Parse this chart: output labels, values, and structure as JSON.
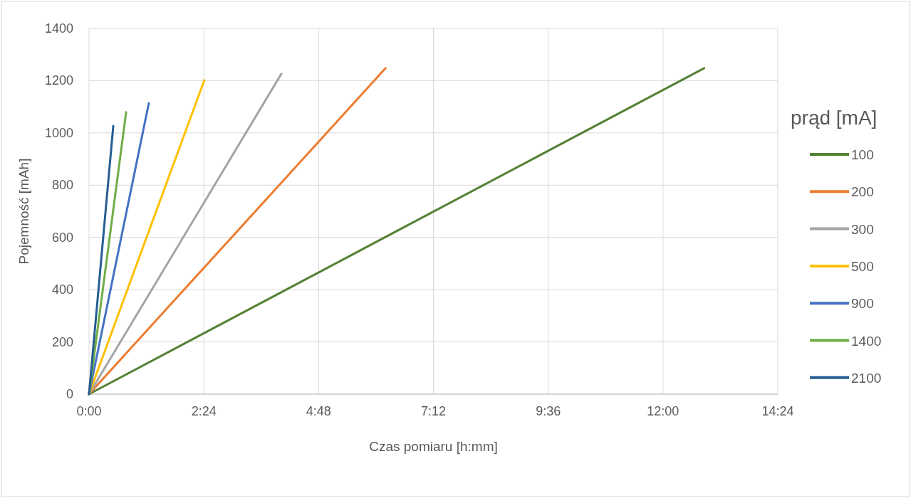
{
  "chart_data": {
    "type": "line",
    "xlabel": "Czas pomiaru [h:mm]",
    "ylabel": "Pojemność [mAh]",
    "legend_title": "prąd [mA]",
    "legend": "right",
    "grid": true,
    "line_style": "solid",
    "marker": "none",
    "xlim": [
      0,
      14.4
    ],
    "xticks": [
      {
        "value": 0,
        "label": "0:00"
      },
      {
        "value": 2.4,
        "label": "2:24"
      },
      {
        "value": 4.8,
        "label": "4:48"
      },
      {
        "value": 7.2,
        "label": "7:12"
      },
      {
        "value": 9.6,
        "label": "9:36"
      },
      {
        "value": 12,
        "label": "12:00"
      },
      {
        "value": 14.4,
        "label": "14:24"
      }
    ],
    "ylim": [
      0,
      1400
    ],
    "yticks": [
      0,
      200,
      400,
      600,
      800,
      1000,
      1200,
      1400
    ],
    "series": [
      {
        "name": "100",
        "color": "#548235",
        "x": [
          0,
          12.86
        ],
        "values": [
          0,
          1248
        ]
      },
      {
        "name": "200",
        "color": "#ed7d31",
        "x": [
          0,
          6.2
        ],
        "values": [
          0,
          1248
        ]
      },
      {
        "name": "300",
        "color": "#a5a5a5",
        "x": [
          0,
          4.02
        ],
        "values": [
          0,
          1226
        ]
      },
      {
        "name": "500",
        "color": "#ffc000",
        "x": [
          0,
          2.41
        ],
        "values": [
          0,
          1202
        ]
      },
      {
        "name": "900",
        "color": "#4472c4",
        "x": [
          0,
          1.25
        ],
        "values": [
          0,
          1114
        ]
      },
      {
        "name": "1400",
        "color": "#70ad47",
        "x": [
          0,
          0.775
        ],
        "values": [
          0,
          1079
        ]
      },
      {
        "name": "2100",
        "color": "#255e91",
        "x": [
          0,
          0.507
        ],
        "values": [
          0,
          1027
        ]
      }
    ]
  }
}
